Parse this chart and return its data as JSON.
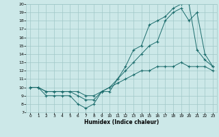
{
  "xlabel": "Humidex (Indice chaleur)",
  "ylabel": "",
  "bg_color": "#cce8e8",
  "grid_color": "#a0c8c8",
  "line_color": "#1a6b6b",
  "xlim": [
    -0.5,
    23.5
  ],
  "ylim": [
    7,
    20
  ],
  "xticks": [
    0,
    1,
    2,
    3,
    4,
    5,
    6,
    7,
    8,
    9,
    10,
    11,
    12,
    13,
    14,
    15,
    16,
    17,
    18,
    19,
    20,
    21,
    22,
    23
  ],
  "yticks": [
    7,
    8,
    9,
    10,
    11,
    12,
    13,
    14,
    15,
    16,
    17,
    18,
    19,
    20
  ],
  "line1_x": [
    0,
    1,
    2,
    3,
    4,
    5,
    6,
    7,
    8,
    9,
    10,
    11,
    12,
    13,
    14,
    15,
    16,
    17,
    18,
    19,
    20,
    21,
    22,
    23
  ],
  "line1_y": [
    10,
    10,
    9,
    9,
    9,
    9,
    8,
    7.5,
    8,
    9.5,
    9.5,
    11,
    12.5,
    14.5,
    15,
    17.5,
    18,
    18.5,
    19.5,
    20,
    20,
    14.5,
    13.3,
    12.5
  ],
  "line2_x": [
    0,
    1,
    2,
    3,
    4,
    5,
    6,
    7,
    8,
    9,
    10,
    11,
    12,
    13,
    14,
    15,
    16,
    17,
    18,
    19,
    20,
    21,
    22,
    23
  ],
  "line2_y": [
    10,
    10,
    9.5,
    9.5,
    9.5,
    9.5,
    9,
    8.5,
    8.5,
    9.5,
    10,
    11,
    12,
    13,
    14,
    15,
    15.5,
    18,
    19,
    19.5,
    18,
    19,
    14,
    12.5
  ],
  "line3_x": [
    0,
    1,
    2,
    3,
    4,
    5,
    6,
    7,
    8,
    9,
    10,
    11,
    12,
    13,
    14,
    15,
    16,
    17,
    18,
    19,
    20,
    21,
    22,
    23
  ],
  "line3_y": [
    10,
    10,
    9.5,
    9.5,
    9.5,
    9.5,
    9.5,
    9,
    9,
    9.5,
    10,
    10.5,
    11,
    11.5,
    12,
    12,
    12.5,
    12.5,
    12.5,
    13,
    12.5,
    12.5,
    12.5,
    12
  ]
}
